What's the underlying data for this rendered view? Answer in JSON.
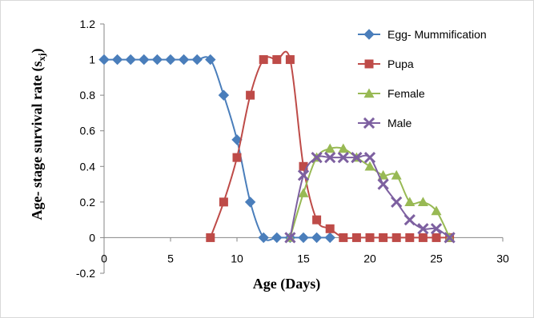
{
  "chart_data": {
    "type": "line",
    "title": "",
    "xlabel": "Age (Days)",
    "ylabel_main": "Age- stage survival rate (s",
    "ylabel_sub": "xj",
    "ylabel_close": ")",
    "xlim": [
      0,
      30
    ],
    "ylim": [
      -0.2,
      1.2
    ],
    "x_ticks": [
      0,
      5,
      10,
      15,
      20,
      25,
      30
    ],
    "x_tick_labels": [
      "0",
      "5",
      "10",
      "15",
      "20",
      "25",
      "30"
    ],
    "y_ticks": [
      -0.2,
      0,
      0.2,
      0.4,
      0.6,
      0.8,
      1,
      1.2
    ],
    "y_tick_labels": [
      "-0.2",
      "0",
      "0.2",
      "0.4",
      "0.6",
      "0.8",
      "1",
      "1.2"
    ],
    "grid": false,
    "legend_position": "right",
    "series": [
      {
        "name": "Egg- Mummification",
        "color": "#4a7ebb",
        "marker": "diamond",
        "x": [
          0,
          1,
          2,
          3,
          4,
          5,
          6,
          7,
          8,
          9,
          10,
          11,
          12,
          13,
          14,
          15,
          16,
          17
        ],
        "y": [
          1,
          1,
          1,
          1,
          1,
          1,
          1,
          1,
          1,
          0.8,
          0.55,
          0.2,
          0,
          0,
          0,
          0,
          0,
          0
        ]
      },
      {
        "name": "Pupa",
        "color": "#be4b48",
        "marker": "square",
        "x": [
          8,
          9,
          10,
          11,
          12,
          13,
          14,
          15,
          16,
          17,
          18,
          19,
          20,
          21,
          22,
          23,
          24,
          25,
          26
        ],
        "y": [
          0,
          0.2,
          0.45,
          0.8,
          1,
          1,
          1,
          0.4,
          0.1,
          0.05,
          0,
          0,
          0,
          0,
          0,
          0,
          0,
          0,
          0
        ]
      },
      {
        "name": "Female",
        "color": "#98b954",
        "marker": "triangle",
        "x": [
          14,
          15,
          16,
          17,
          18,
          19,
          20,
          21,
          22,
          23,
          24,
          25,
          26
        ],
        "y": [
          0,
          0.25,
          0.45,
          0.5,
          0.5,
          0.45,
          0.4,
          0.35,
          0.35,
          0.2,
          0.2,
          0.15,
          0
        ]
      },
      {
        "name": "Male",
        "color": "#7d60a0",
        "marker": "x",
        "x": [
          14,
          15,
          16,
          17,
          18,
          19,
          20,
          21,
          22,
          23,
          24,
          25,
          26
        ],
        "y": [
          0,
          0.35,
          0.45,
          0.45,
          0.45,
          0.45,
          0.45,
          0.3,
          0.2,
          0.1,
          0.05,
          0.05,
          0
        ]
      }
    ]
  }
}
